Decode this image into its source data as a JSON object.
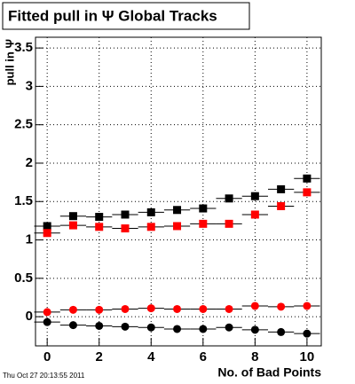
{
  "chart_data": {
    "type": "scatter",
    "title": "Fitted pull in Ψ   Global Tracks",
    "x_label": "No. of Bad Points",
    "y_label": "pull in Ψ",
    "footer": "Thu Oct 27 20:13:55 2011",
    "x": [
      0,
      1,
      2,
      3,
      4,
      5,
      6,
      7,
      8,
      9,
      10
    ],
    "series": [
      {
        "color": "#000000",
        "marker": "square",
        "xerr": 0.5,
        "values": [
          1.18,
          1.31,
          1.3,
          1.33,
          1.36,
          1.39,
          1.41,
          1.54,
          1.57,
          1.66,
          1.8
        ]
      },
      {
        "color": "#ff0000",
        "marker": "square",
        "xerr": 0.5,
        "values": [
          1.09,
          1.19,
          1.17,
          1.15,
          1.17,
          1.18,
          1.21,
          1.21,
          1.33,
          1.44,
          1.62
        ]
      },
      {
        "color": "#ff0000",
        "marker": "circle",
        "xerr": 0.5,
        "values": [
          0.06,
          0.09,
          0.09,
          0.1,
          0.11,
          0.1,
          0.1,
          0.1,
          0.14,
          0.13,
          0.14
        ]
      },
      {
        "color": "#000000",
        "marker": "circle",
        "xerr": 0.5,
        "values": [
          -0.07,
          -0.11,
          -0.12,
          -0.13,
          -0.14,
          -0.16,
          -0.16,
          -0.14,
          -0.17,
          -0.2,
          -0.22
        ]
      }
    ],
    "xlim": [
      -0.45,
      10.55
    ],
    "xticks": [
      0,
      2,
      4,
      6,
      8,
      10
    ],
    "ylim": [
      -0.38,
      3.64
    ],
    "yticks": [
      0,
      0.5,
      1,
      1.5,
      2,
      2.5,
      3,
      3.5
    ],
    "grid": true
  }
}
